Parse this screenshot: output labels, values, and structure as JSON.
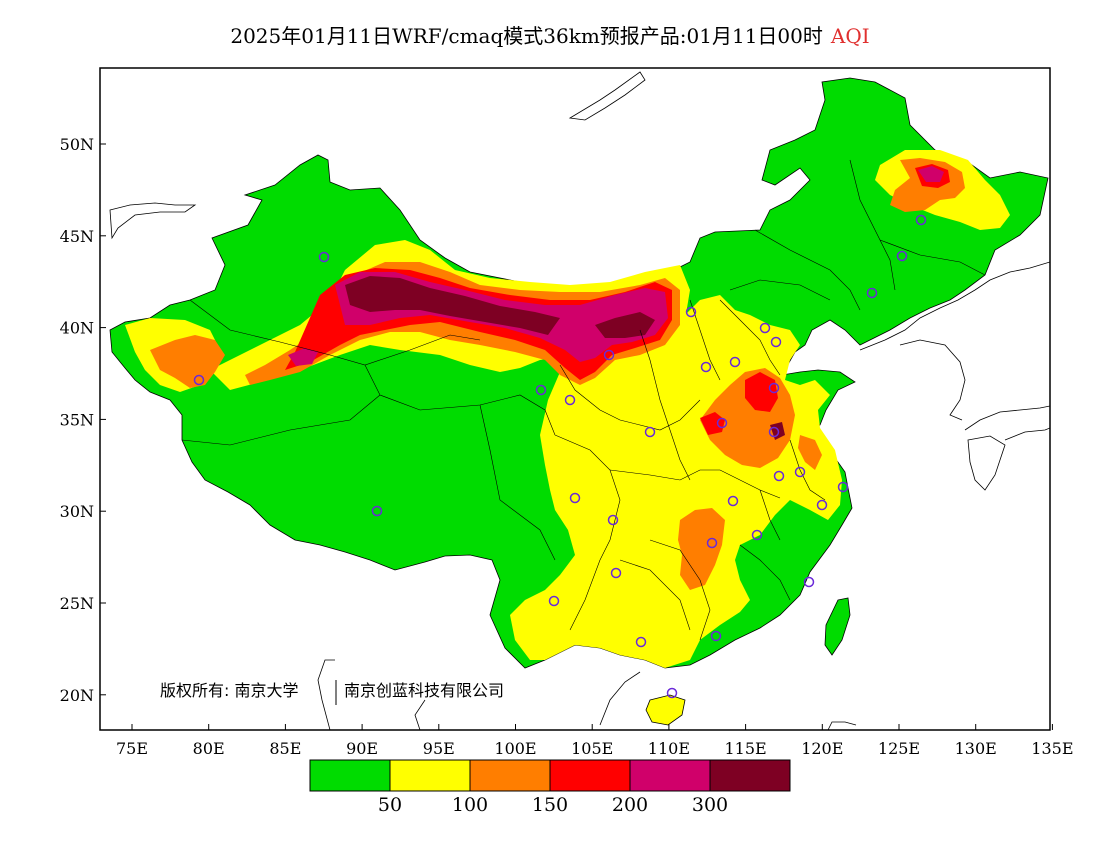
{
  "title": {
    "main": "2025年01月11日WRF/cmaq模式36km预报产品:01月11日00时",
    "variable": "AQI",
    "variable_color": "#e0302f"
  },
  "map": {
    "lon_ticks": [
      "75E",
      "80E",
      "85E",
      "90E",
      "95E",
      "100E",
      "105E",
      "110E",
      "115E",
      "120E",
      "125E",
      "130E",
      "135E"
    ],
    "lat_ticks": [
      "50N",
      "45N",
      "40N",
      "35N",
      "30N",
      "25N",
      "20N"
    ],
    "copyright_left": "版权所有: 南京大学",
    "copyright_right": "南京创蓝科技有限公司",
    "station_marker": "purple-circle-icon",
    "aqi_levels": {
      "good": "#00dc00",
      "moderate": "#ffff00",
      "sensitive": "#ff7e00",
      "unhealthy": "#ff0000",
      "very_unhealthy": "#d0006a",
      "hazardous": "#7e0023"
    }
  },
  "legend": {
    "colors": [
      "#00dc00",
      "#ffff00",
      "#ff7e00",
      "#ff0000",
      "#d0006a",
      "#7e0023"
    ],
    "labels": [
      "50",
      "100",
      "150",
      "200",
      "300"
    ]
  }
}
